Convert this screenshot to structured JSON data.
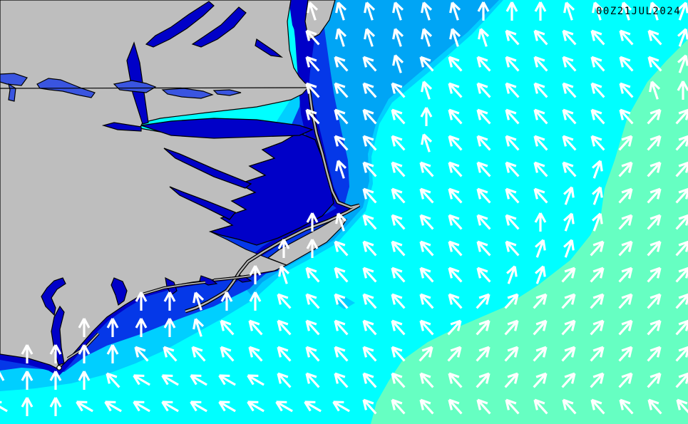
{
  "header": {
    "timestamp_label": "00Z21JUL2024"
  },
  "colors": {
    "ocean_cyan": "#00FFFF",
    "ocean_green": "#66FFC2",
    "band_pale": "#00CFFF",
    "band_sky": "#00A5F5",
    "band_royal": "#0538E8",
    "band_navy": "#0000C8",
    "lake_blue": "#3A55E0",
    "land_gray": "#BEBEBE",
    "island_gray": "#B5B5B5",
    "island_dot": "#FFFFFF",
    "outline_black": "#000000",
    "arrow_white": "#FFFFFF",
    "text_black": "#000000"
  },
  "arrow_field": {
    "description": "Wind/swell direction arrows; compass-like codes mapped to rotation degrees (0 = north/up, negative = toward west)",
    "codes": {
      "N": 0,
      "n": -18,
      "W": -42,
      "w": -60,
      "E": 20,
      "e": 42
    },
    "col_start": -2,
    "col_step": 40,
    "row_start": 15,
    "row_step": 37,
    "rows": [
      "...........nnnnnnNNNnnnnE",
      "...........WnnnnnnWWWWWWE",
      "...........WWWnWWWWWWWWWE",
      "...........WWWWnWWWWWWWnN",
      "...........WWWWNWWWWWWWee",
      "............WWWnWWWWWWeee",
      "............nWWWWWWWWEeee",
      ".............WWWWWWWEEeee",
      "...........NnWWWWWWNEEeee",
      "..........NNWWWWWWWEEeeee",
      ".........NnWWWWWWWEEeeeee",
      ".....NNnNNWWWWWWWeeeeeeee",
      "...NNNNnWWWWWWWWeeeeeeeee",
      ".NNNNWWWWWWWWWWeeeeeeeeee",
      "NNNNWwwwwwWWWWWWWeeeeeeee",
      "wNNwwwwwwwwwwWWWWWWWWWWWW"
    ]
  }
}
